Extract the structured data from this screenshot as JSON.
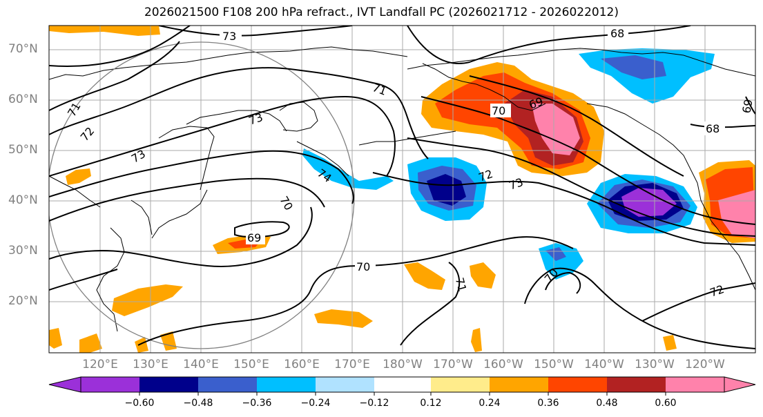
{
  "title": "2026021500 F108 200 hPa refract., IVT Landfall PC (2026021712 - 2026022012)",
  "lat_labels": [
    "70°N",
    "60°N",
    "50°N",
    "40°N",
    "30°N",
    "20°N"
  ],
  "lon_labels": [
    "120°E",
    "130°E",
    "140°E",
    "150°E",
    "160°E",
    "170°E",
    "180°W",
    "170°W",
    "160°W",
    "150°W",
    "140°W",
    "130°W",
    "120°W"
  ],
  "contour_labels": [
    "73",
    "68",
    "71",
    "72",
    "73",
    "71",
    "73",
    "74",
    "70",
    "69",
    "70",
    "72",
    "73",
    "71",
    "70",
    "70",
    "69",
    "68",
    "72",
    "69"
  ],
  "colorbar": {
    "ticks": [
      "−0.60",
      "−0.48",
      "−0.36",
      "−0.24",
      "−0.12",
      "0.12",
      "0.24",
      "0.36",
      "0.48",
      "0.60"
    ],
    "colors": [
      "#9b30d9",
      "#00008b",
      "#3a5fcd",
      "#00bfff",
      "#b0e2ff",
      "#ffffff",
      "#ffec8b",
      "#ffa500",
      "#ff4500",
      "#b22222",
      "#ff82ab"
    ]
  }
}
